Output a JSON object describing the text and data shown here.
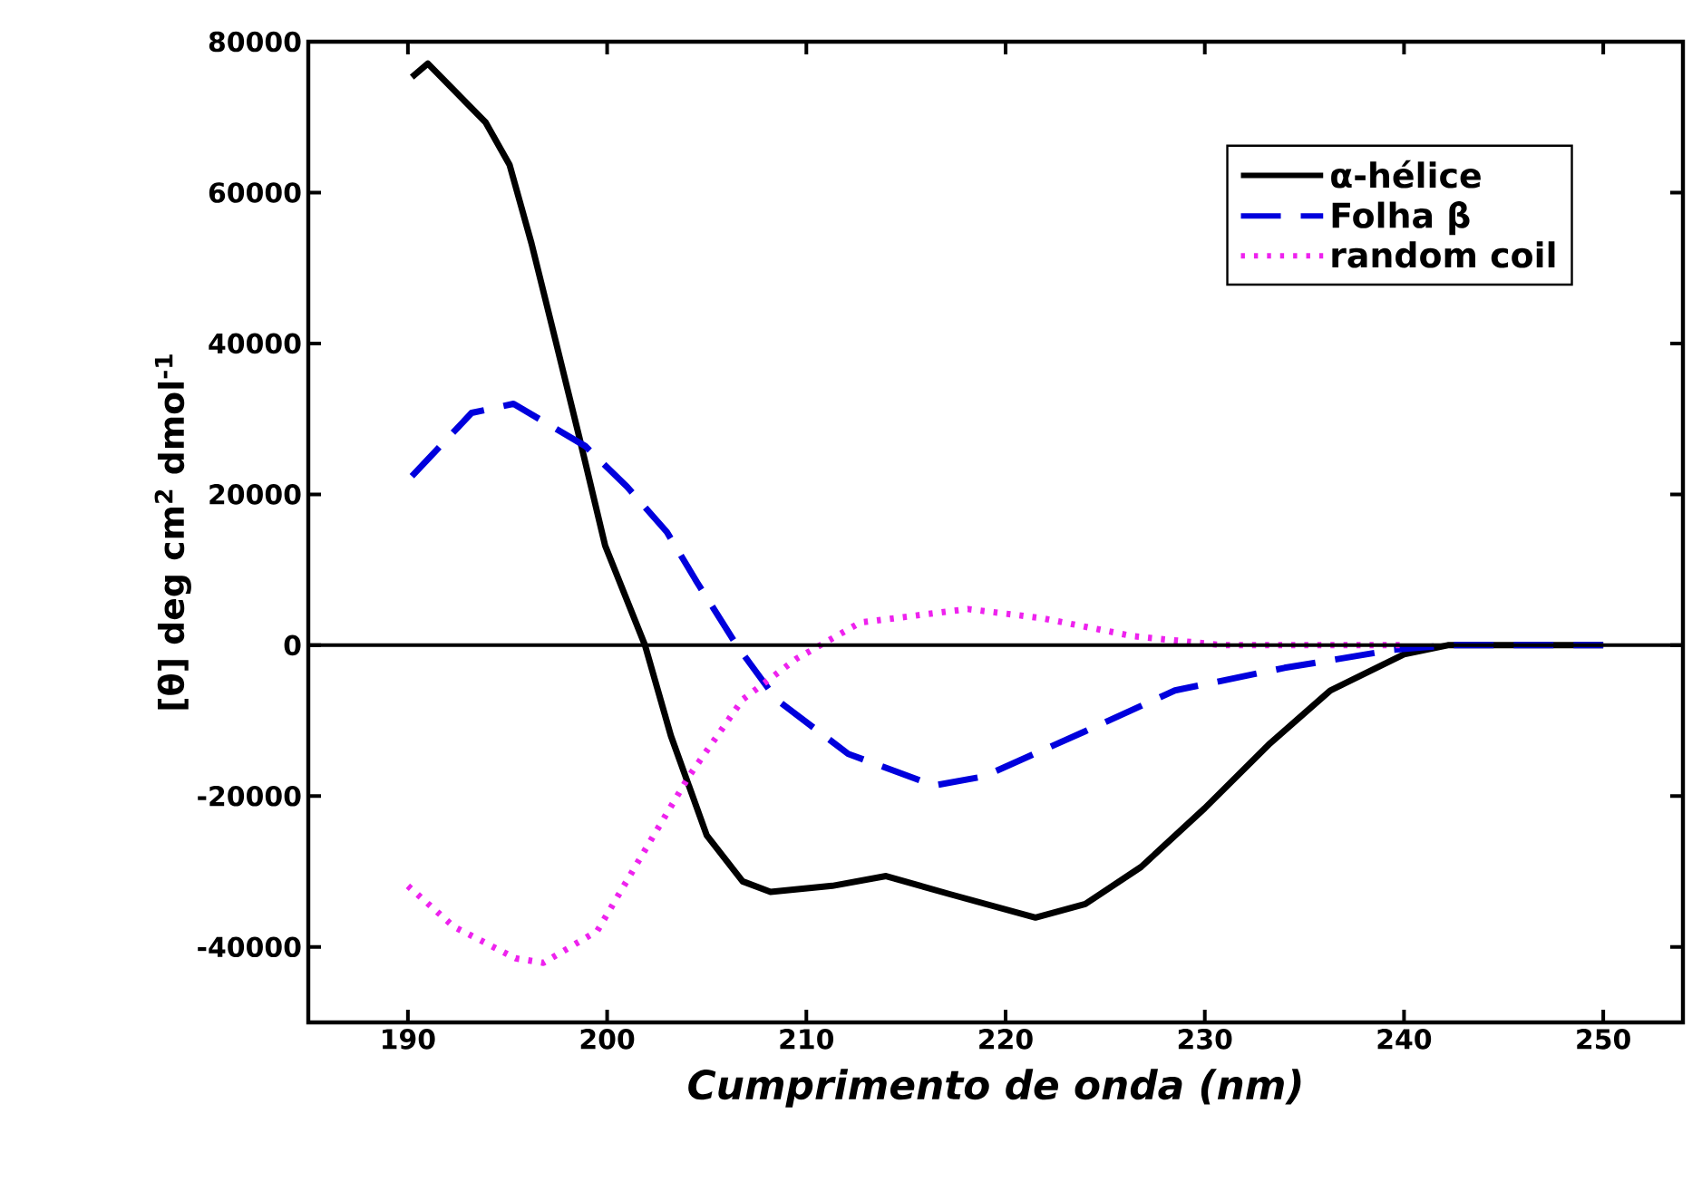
{
  "chart_data": {
    "type": "line",
    "xlabel": "Cumprimento de onda (nm)",
    "ylabel": "[θ] deg cm$^{2}$ dmol$^{-1}$",
    "xlim": [
      185,
      254
    ],
    "ylim": [
      -50000,
      80000
    ],
    "xticks": [
      190,
      200,
      210,
      220,
      230,
      240,
      250
    ],
    "yticks": [
      -40000,
      -20000,
      0,
      20000,
      40000,
      60000,
      80000
    ],
    "legend": "top right",
    "grid": false,
    "ref_lines": [
      {
        "axis": "y",
        "value": 0,
        "color": "#000000"
      }
    ],
    "series": [
      {
        "name": "α-hélice",
        "color": "#000000",
        "line_style": "solid",
        "x": [
          190.2,
          191,
          193.9,
          195.1,
          196.2,
          197.4,
          198.6,
          199.9,
          201.9,
          203.2,
          205.0,
          206.8,
          208.2,
          211.3,
          214.0,
          217.2,
          221.5,
          224.0,
          226.8,
          230.0,
          233.2,
          236.3,
          240,
          242.2,
          250
        ],
        "values": [
          75300,
          77100,
          69300,
          63700,
          53300,
          40500,
          27600,
          13200,
          0,
          -12000,
          -25200,
          -31300,
          -32700,
          -31900,
          -30600,
          -33000,
          -36100,
          -34300,
          -29400,
          -21600,
          -13200,
          -6000,
          -1200,
          0,
          0
        ]
      },
      {
        "name": "Folha β",
        "color": "#0000dd",
        "line_style": "dashed",
        "x": [
          190.2,
          193.2,
          195.3,
          198.9,
          201.0,
          203.0,
          204.5,
          206.5,
          208.5,
          212.1,
          216.4,
          218.9,
          224.0,
          228.5,
          234.0,
          239.5,
          242.2,
          250
        ],
        "values": [
          22400,
          30800,
          32000,
          26400,
          21000,
          15000,
          8400,
          0,
          -7200,
          -14400,
          -18600,
          -17400,
          -11400,
          -6000,
          -3000,
          -600,
          0,
          0
        ]
      },
      {
        "name": "random coil",
        "color": "#ee22ee",
        "line_style": "dotted",
        "x": [
          190,
          192.3,
          195.4,
          196.8,
          199.5,
          201.8,
          204.1,
          206.8,
          209.5,
          212.7,
          218.1,
          221.8,
          226.4,
          230.9,
          240
        ],
        "values": [
          -31900,
          -37300,
          -41500,
          -42100,
          -37900,
          -27600,
          -17400,
          -7200,
          -1800,
          3000,
          4800,
          3600,
          1200,
          0,
          0
        ]
      }
    ]
  }
}
